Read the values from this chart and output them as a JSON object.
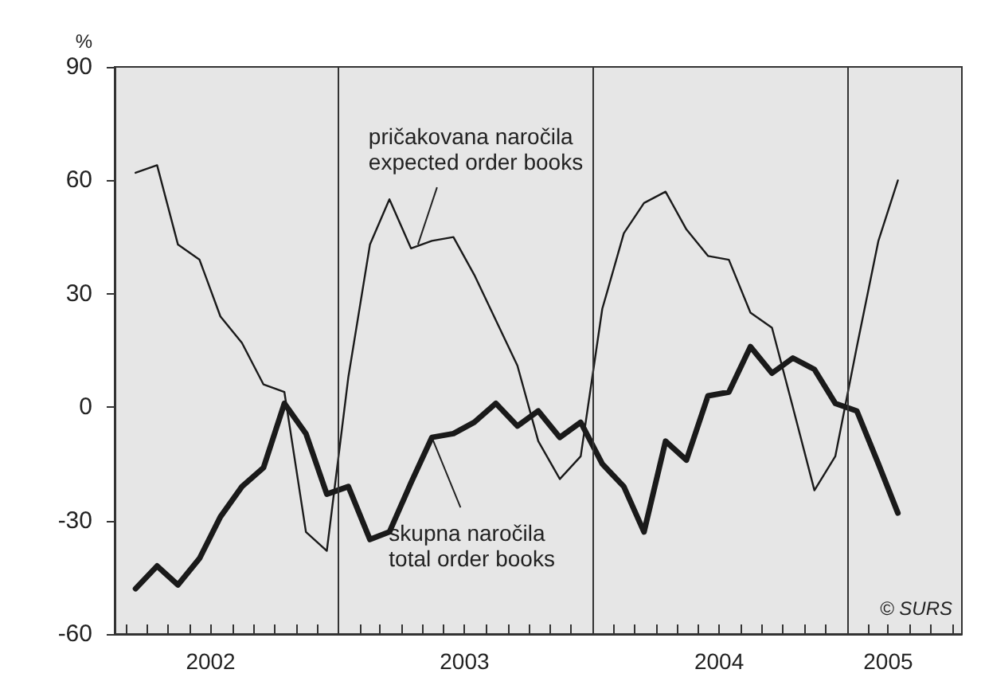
{
  "chart_data": {
    "type": "line",
    "ylabel": "%",
    "x": [
      "2002-03-15",
      "2002-04-15",
      "2002-05-15",
      "2002-06-15",
      "2002-07-15",
      "2002-08-15",
      "2002-09-15",
      "2002-10-15",
      "2002-11-15",
      "2002-12-15",
      "2003-01-15",
      "2003-02-15",
      "2003-03-15",
      "2003-04-15",
      "2003-05-15",
      "2003-06-15",
      "2003-07-15",
      "2003-08-15",
      "2003-09-15",
      "2003-10-15",
      "2003-11-15",
      "2003-12-15",
      "2004-01-15",
      "2004-02-15",
      "2004-03-15",
      "2004-04-15",
      "2004-05-15",
      "2004-06-15",
      "2004-07-15",
      "2004-08-15",
      "2004-09-15",
      "2004-10-15",
      "2004-11-15",
      "2004-12-15",
      "2005-01-15",
      "2005-02-15",
      "2005-03-15"
    ],
    "series": [
      {
        "color": "#1a1a1a",
        "values": [
          62,
          64,
          43,
          39,
          24,
          17,
          6,
          4,
          -33,
          -38,
          8,
          43,
          55,
          42,
          44,
          45,
          35,
          23,
          11,
          -9,
          -19,
          -13,
          26,
          46,
          54,
          57,
          47,
          40,
          39,
          25,
          21,
          0,
          -22,
          -13,
          16,
          44,
          60
        ]
      },
      {
        "color": "#1a1a1a",
        "values": [
          -48,
          -42,
          -47,
          -40,
          -29,
          -21,
          -16,
          1,
          -7,
          -23,
          -21,
          -35,
          -33,
          -20,
          -8,
          -7,
          -4,
          1,
          -5,
          -1,
          -8,
          -4,
          -15,
          -21,
          -33,
          -9,
          -14,
          3,
          4,
          16,
          9,
          13,
          10,
          1,
          -1,
          -15,
          -28
        ]
      }
    ],
    "xlim": [
      "2002-02-13",
      "2005-06-15"
    ],
    "xticks": [
      {
        "value": "2002-03-01",
        "label": null
      },
      {
        "value": "2002-04-01",
        "label": null
      },
      {
        "value": "2002-05-01",
        "label": null
      },
      {
        "value": "2002-06-01",
        "label": null
      },
      {
        "value": "2002-07-01",
        "label": "2002"
      },
      {
        "value": "2002-08-01",
        "label": null
      },
      {
        "value": "2002-09-01",
        "label": null
      },
      {
        "value": "2002-10-01",
        "label": null
      },
      {
        "value": "2002-11-01",
        "label": null
      },
      {
        "value": "2002-12-01",
        "label": null
      },
      {
        "value": "2003-01-01",
        "label": null
      },
      {
        "value": "2003-02-01",
        "label": null
      },
      {
        "value": "2003-03-01",
        "label": null
      },
      {
        "value": "2003-04-01",
        "label": null
      },
      {
        "value": "2003-05-01",
        "label": null
      },
      {
        "value": "2003-06-01",
        "label": null
      },
      {
        "value": "2003-07-01",
        "label": "2003"
      },
      {
        "value": "2003-08-01",
        "label": null
      },
      {
        "value": "2003-09-01",
        "label": null
      },
      {
        "value": "2003-10-01",
        "label": null
      },
      {
        "value": "2003-11-01",
        "label": null
      },
      {
        "value": "2003-12-01",
        "label": null
      },
      {
        "value": "2004-01-01",
        "label": null
      },
      {
        "value": "2004-02-01",
        "label": null
      },
      {
        "value": "2004-03-01",
        "label": null
      },
      {
        "value": "2004-04-01",
        "label": null
      },
      {
        "value": "2004-05-01",
        "label": null
      },
      {
        "value": "2004-06-01",
        "label": null
      },
      {
        "value": "2004-07-01",
        "label": "2004"
      },
      {
        "value": "2004-08-01",
        "label": null
      },
      {
        "value": "2004-09-01",
        "label": null
      },
      {
        "value": "2004-10-01",
        "label": null
      },
      {
        "value": "2004-11-01",
        "label": null
      },
      {
        "value": "2004-12-01",
        "label": null
      },
      {
        "value": "2005-01-01",
        "label": null
      },
      {
        "value": "2005-02-01",
        "label": null
      },
      {
        "value": "2005-03-01",
        "label": "2005"
      },
      {
        "value": "2005-04-01",
        "label": null
      },
      {
        "value": "2005-05-01",
        "label": null
      },
      {
        "value": "2005-06-01",
        "label": null
      }
    ],
    "ylim": [
      -60,
      90
    ],
    "yticks": [
      -60,
      -30,
      0,
      30,
      60,
      90
    ],
    "ref_lines": [
      {
        "axis": "x",
        "value": "2003-01-01",
        "label": null,
        "color": "#333333"
      },
      {
        "axis": "x",
        "value": "2004-01-01",
        "label": null,
        "color": "#333333"
      },
      {
        "axis": "x",
        "value": "2005-01-01",
        "label": null,
        "color": "#333333"
      }
    ],
    "annotations": [
      {
        "text": "pričakovana naročila\nexpected order books",
        "x": "2003-04-25",
        "y": 43
      },
      {
        "text": "skupna naročila\ntotal order books",
        "x": "2003-05-15",
        "y": -8
      },
      "© SURS"
    ],
    "grid": false,
    "marker": "none",
    "line_style": "solid"
  }
}
